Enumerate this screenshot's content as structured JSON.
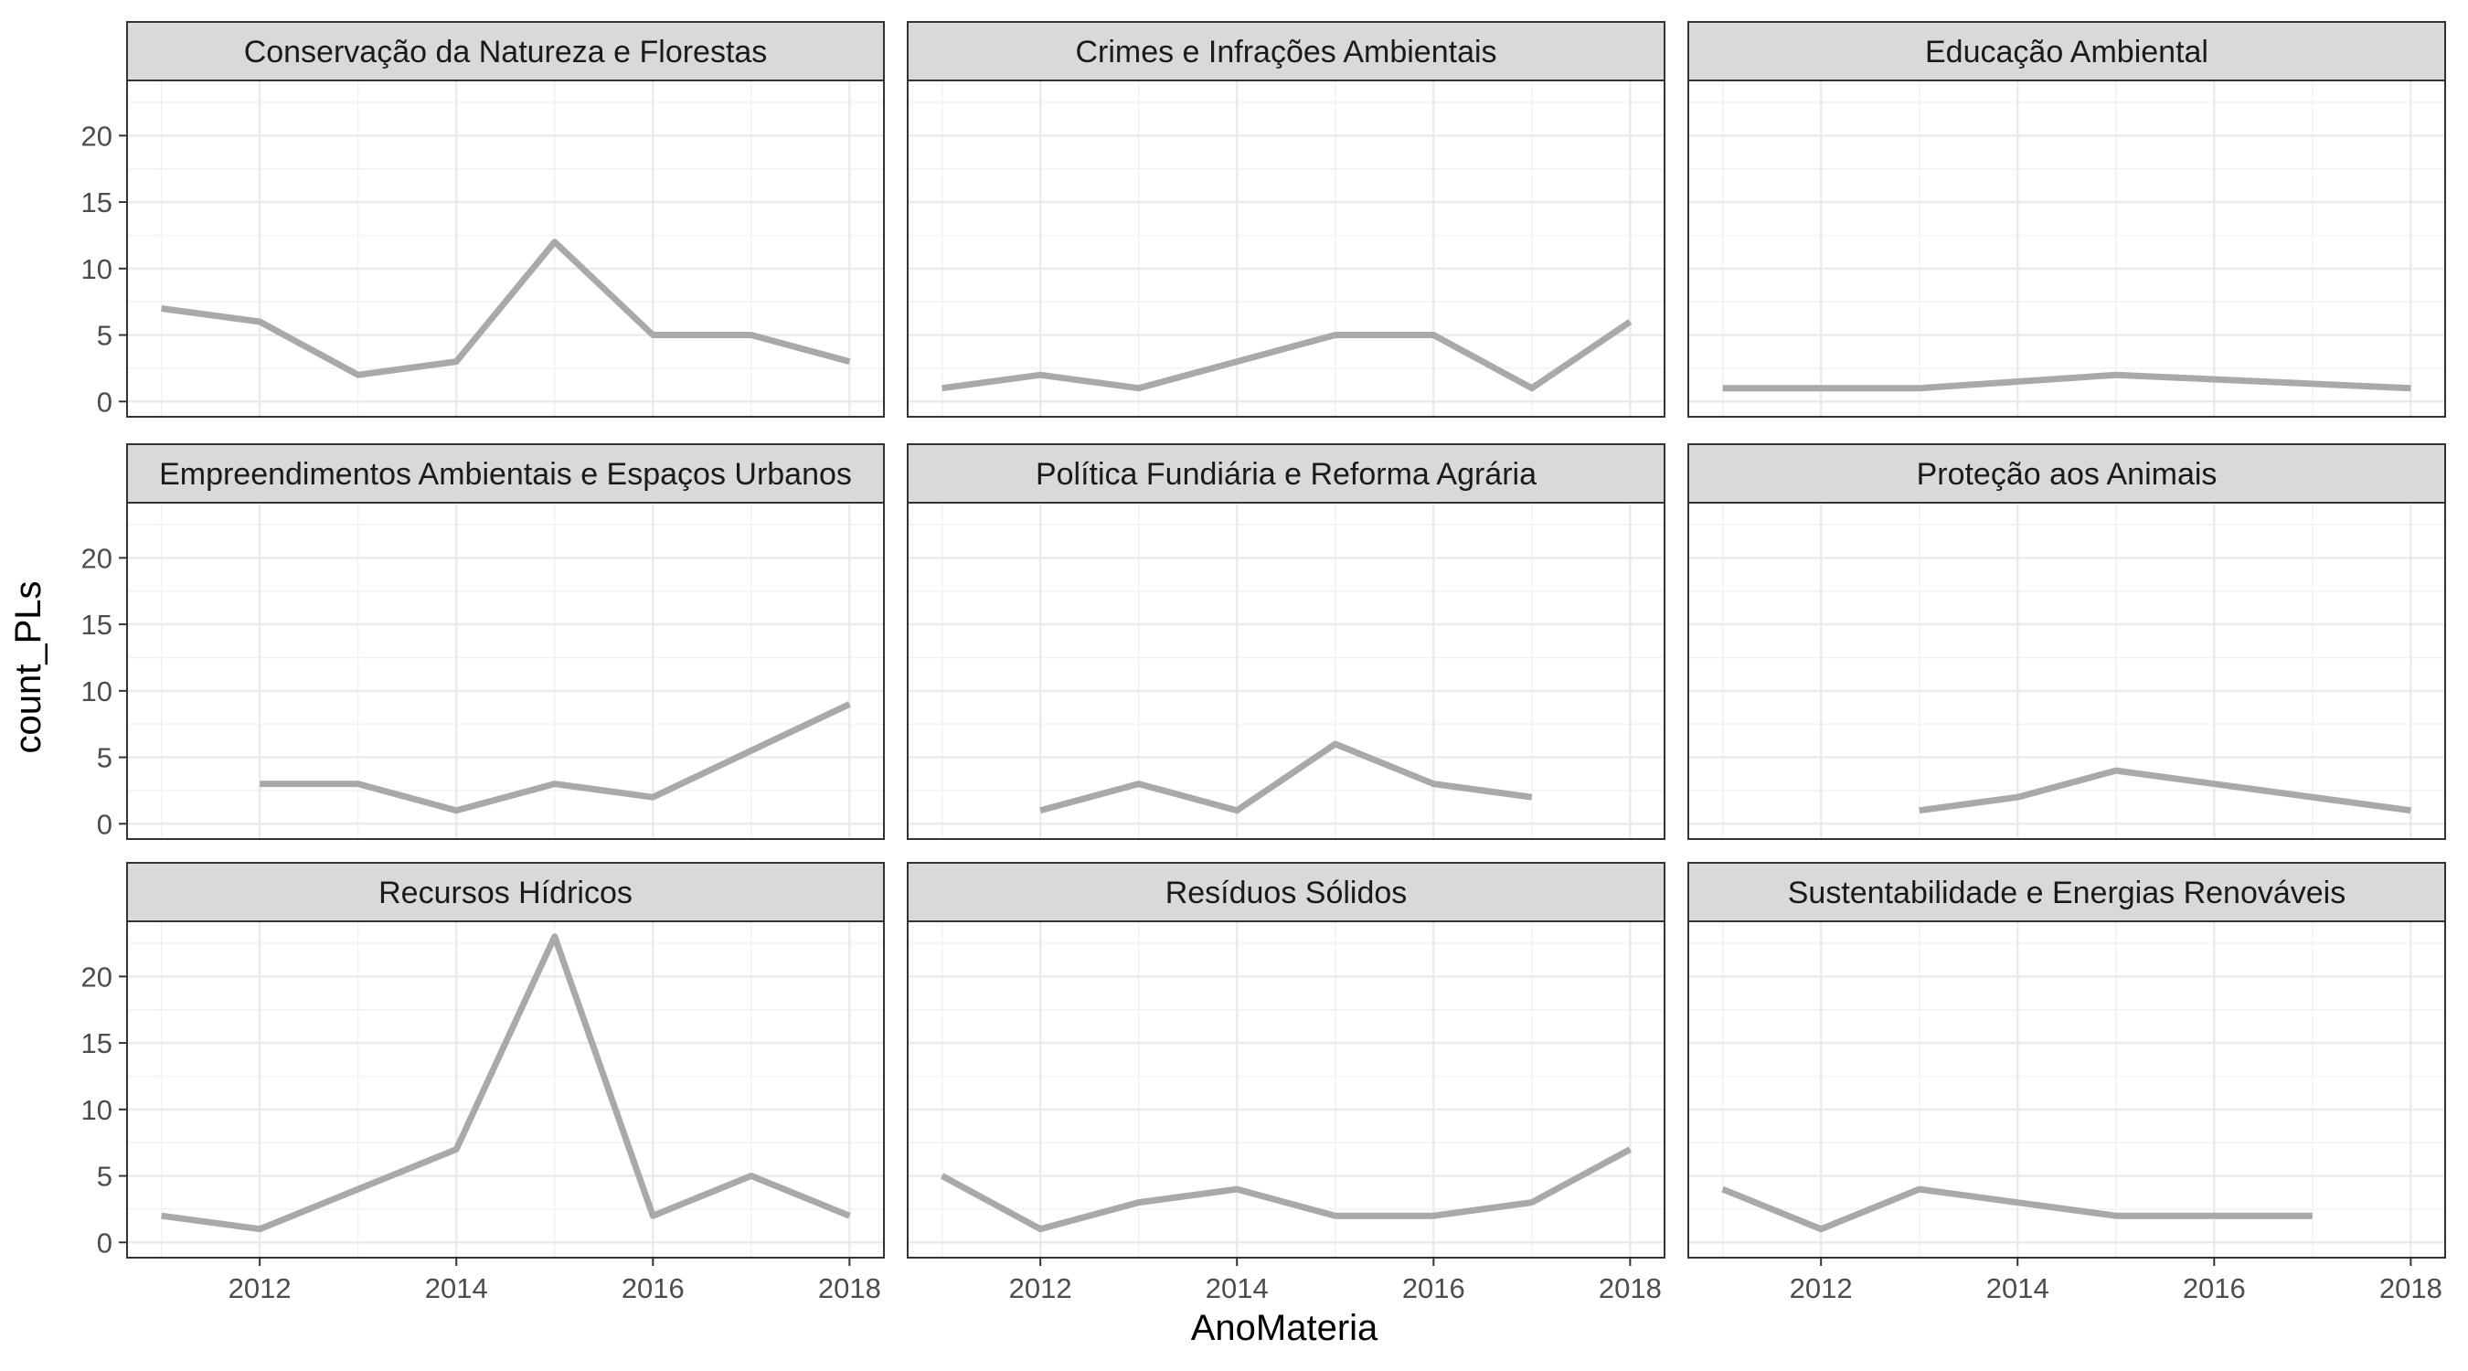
{
  "chart_data": {
    "type": "line",
    "layout": "facet-grid-3x3",
    "xlabel": "AnoMateria",
    "ylabel": "count_PLs",
    "xlim": [
      2011,
      2018
    ],
    "ylim": [
      0,
      23
    ],
    "x_ticks": [
      2012,
      2014,
      2016,
      2018
    ],
    "y_ticks": [
      0,
      5,
      10,
      15,
      20
    ],
    "grid": true,
    "line_color": "#a9a9a9",
    "strip_fill": "#d9d9d9",
    "panel_border": "#333333",
    "panels": [
      {
        "title": "Conservação da Natureza e Florestas",
        "x": [
          2011,
          2012,
          2013,
          2014,
          2015,
          2016,
          2017,
          2018
        ],
        "y": [
          7,
          6,
          2,
          3,
          12,
          5,
          5,
          3
        ]
      },
      {
        "title": "Crimes e Infrações Ambientais",
        "x": [
          2011,
          2012,
          2013,
          2014,
          2015,
          2016,
          2017,
          2018
        ],
        "y": [
          1,
          2,
          1,
          3,
          5,
          5,
          1,
          6
        ]
      },
      {
        "title": "Educação Ambiental",
        "x": [
          2011,
          2013,
          2015,
          2018
        ],
        "y": [
          1,
          1,
          2,
          1
        ]
      },
      {
        "title": "Empreendimentos Ambientais e Espaços Urbanos",
        "x": [
          2012,
          2013,
          2014,
          2015,
          2016,
          2018
        ],
        "y": [
          3,
          3,
          1,
          3,
          2,
          9
        ]
      },
      {
        "title": "Política Fundiária e Reforma Agrária",
        "x": [
          2012,
          2013,
          2014,
          2015,
          2016,
          2017
        ],
        "y": [
          1,
          3,
          1,
          6,
          3,
          2
        ]
      },
      {
        "title": "Proteção aos Animais",
        "x": [
          2013,
          2014,
          2015,
          2018
        ],
        "y": [
          1,
          2,
          4,
          1
        ]
      },
      {
        "title": "Recursos Hídricos",
        "x": [
          2011,
          2012,
          2014,
          2015,
          2016,
          2017,
          2018
        ],
        "y": [
          2,
          1,
          7,
          23,
          2,
          5,
          2
        ]
      },
      {
        "title": "Resíduos Sólidos",
        "x": [
          2011,
          2012,
          2013,
          2014,
          2015,
          2016,
          2017,
          2018
        ],
        "y": [
          5,
          1,
          3,
          4,
          2,
          2,
          3,
          7
        ]
      },
      {
        "title": "Sustentabilidade e Energias Renováveis",
        "x": [
          2011,
          2012,
          2013,
          2015,
          2016,
          2017
        ],
        "y": [
          4,
          1,
          4,
          2,
          2,
          2
        ]
      }
    ]
  }
}
